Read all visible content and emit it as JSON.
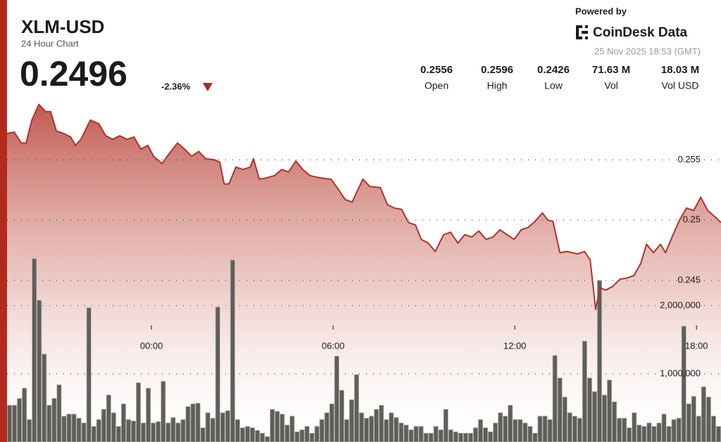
{
  "header": {
    "title": "XLM-USD",
    "subtitle": "24 Hour Chart",
    "price": "0.2496",
    "change": "-2.36%",
    "powered_by": "Powered by",
    "brand": "CoinDesk Data",
    "timestamp": "25 Nov 2025 18:53 (GMT)",
    "stats": [
      {
        "value": "0.2556",
        "label": "Open"
      },
      {
        "value": "0.2596",
        "label": "High"
      },
      {
        "value": "0.2426",
        "label": "Low"
      },
      {
        "value": "71.63 M",
        "label": "Vol"
      },
      {
        "value": "18.03 M",
        "label": "Vol USD"
      }
    ]
  },
  "chart_data": [
    {
      "type": "line",
      "color": "#b0332a",
      "grid": true,
      "x": [
        -4.77,
        -4.53,
        -4.3,
        -4.14,
        -3.95,
        -3.72,
        -3.49,
        -3.33,
        -3.14,
        -2.91,
        -2.67,
        -2.51,
        -2.33,
        -2.02,
        -1.74,
        -1.51,
        -1.28,
        -1.05,
        -0.81,
        -0.58,
        -0.35,
        -0.12,
        0.07,
        0.35,
        0.58,
        0.86,
        1.09,
        1.33,
        1.56,
        1.79,
        2.09,
        2.26,
        2.4,
        2.56,
        2.79,
        3.02,
        3.26,
        3.37,
        3.56,
        3.79,
        4.07,
        4.3,
        4.53,
        4.77,
        5.0,
        5.23,
        5.58,
        5.93,
        6.16,
        6.4,
        6.63,
        6.98,
        7.21,
        7.56,
        7.79,
        8.02,
        8.26,
        8.49,
        8.72,
        8.91,
        9.14,
        9.37,
        9.65,
        9.88,
        10.12,
        10.35,
        10.58,
        10.81,
        11.05,
        11.28,
        11.51,
        11.74,
        11.98,
        12.21,
        12.44,
        12.67,
        12.91,
        13.09,
        13.26,
        13.49,
        13.72,
        14.07,
        14.3,
        14.49,
        14.67,
        14.81,
        15.0,
        15.23,
        15.47,
        15.7,
        15.93,
        16.16,
        16.35,
        16.58,
        16.81,
        16.98,
        17.21,
        17.44,
        17.67,
        17.91,
        18.14,
        18.37,
        18.6,
        18.81
      ],
      "values": [
        0.2572,
        0.2573,
        0.2564,
        0.2564,
        0.2583,
        0.2596,
        0.259,
        0.259,
        0.2574,
        0.2572,
        0.2569,
        0.2562,
        0.2567,
        0.2583,
        0.258,
        0.257,
        0.2567,
        0.257,
        0.2567,
        0.2569,
        0.2559,
        0.2562,
        0.2553,
        0.2547,
        0.2555,
        0.2564,
        0.2559,
        0.2553,
        0.2557,
        0.2551,
        0.255,
        0.2548,
        0.253,
        0.253,
        0.2544,
        0.2542,
        0.2544,
        0.2551,
        0.2534,
        0.2535,
        0.2537,
        0.2542,
        0.254,
        0.2549,
        0.2542,
        0.2537,
        0.2535,
        0.2534,
        0.2526,
        0.2517,
        0.2515,
        0.2534,
        0.2528,
        0.2527,
        0.2513,
        0.251,
        0.2509,
        0.2498,
        0.2496,
        0.2484,
        0.2481,
        0.2474,
        0.2488,
        0.249,
        0.2481,
        0.2488,
        0.2486,
        0.2491,
        0.2484,
        0.2486,
        0.2492,
        0.2488,
        0.2484,
        0.2492,
        0.2494,
        0.2499,
        0.2506,
        0.25,
        0.2499,
        0.2473,
        0.2474,
        0.2472,
        0.2474,
        0.2467,
        0.2426,
        0.2444,
        0.2442,
        0.2445,
        0.2451,
        0.2452,
        0.2454,
        0.2464,
        0.248,
        0.2473,
        0.248,
        0.2473,
        0.2487,
        0.25,
        0.251,
        0.2508,
        0.2519,
        0.2508,
        0.2503,
        0.2498
      ],
      "xlim": [
        -4.77,
        18.81
      ],
      "xticks": [
        {
          "value": 0,
          "label": "00:00"
        },
        {
          "value": 6,
          "label": "06:00"
        },
        {
          "value": 12,
          "label": "12:00"
        },
        {
          "value": 18,
          "label": "18:00"
        }
      ],
      "ylim": [
        0.2316,
        0.2601
      ],
      "yticks": [
        0.245,
        0.25,
        0.255
      ]
    },
    {
      "type": "bar",
      "color": "#5f5e5a",
      "grid": true,
      "values": [
        540000,
        540000,
        640000,
        790000,
        330000,
        2690000,
        2080000,
        1290000,
        540000,
        640000,
        840000,
        380000,
        410000,
        410000,
        350000,
        280000,
        1970000,
        230000,
        330000,
        480000,
        690000,
        430000,
        230000,
        560000,
        330000,
        310000,
        870000,
        280000,
        790000,
        280000,
        300000,
        890000,
        280000,
        360000,
        280000,
        330000,
        520000,
        560000,
        570000,
        210000,
        430000,
        350000,
        1980000,
        430000,
        460000,
        2670000,
        330000,
        210000,
        230000,
        210000,
        170000,
        130000,
        80000,
        480000,
        450000,
        410000,
        250000,
        380000,
        150000,
        180000,
        230000,
        130000,
        230000,
        330000,
        430000,
        560000,
        1260000,
        760000,
        330000,
        620000,
        990000,
        430000,
        350000,
        380000,
        480000,
        540000,
        330000,
        430000,
        360000,
        280000,
        250000,
        180000,
        230000,
        230000,
        130000,
        130000,
        230000,
        180000,
        480000,
        180000,
        150000,
        130000,
        130000,
        130000,
        210000,
        330000,
        210000,
        150000,
        280000,
        430000,
        380000,
        540000,
        330000,
        330000,
        280000,
        230000,
        130000,
        380000,
        380000,
        330000,
        1270000,
        940000,
        660000,
        430000,
        380000,
        350000,
        1480000,
        940000,
        740000,
        2370000,
        690000,
        910000,
        590000,
        350000,
        350000,
        210000,
        430000,
        250000,
        230000,
        280000,
        230000,
        280000,
        410000,
        230000,
        330000,
        350000,
        1700000,
        560000,
        670000,
        380000,
        810000,
        660000,
        380000,
        230000
      ],
      "ylim": [
        0,
        5040000
      ],
      "yticks": [
        {
          "value": 1000000,
          "label": "1,000,000"
        },
        {
          "value": 2000000,
          "label": "2,000,000"
        }
      ]
    }
  ]
}
